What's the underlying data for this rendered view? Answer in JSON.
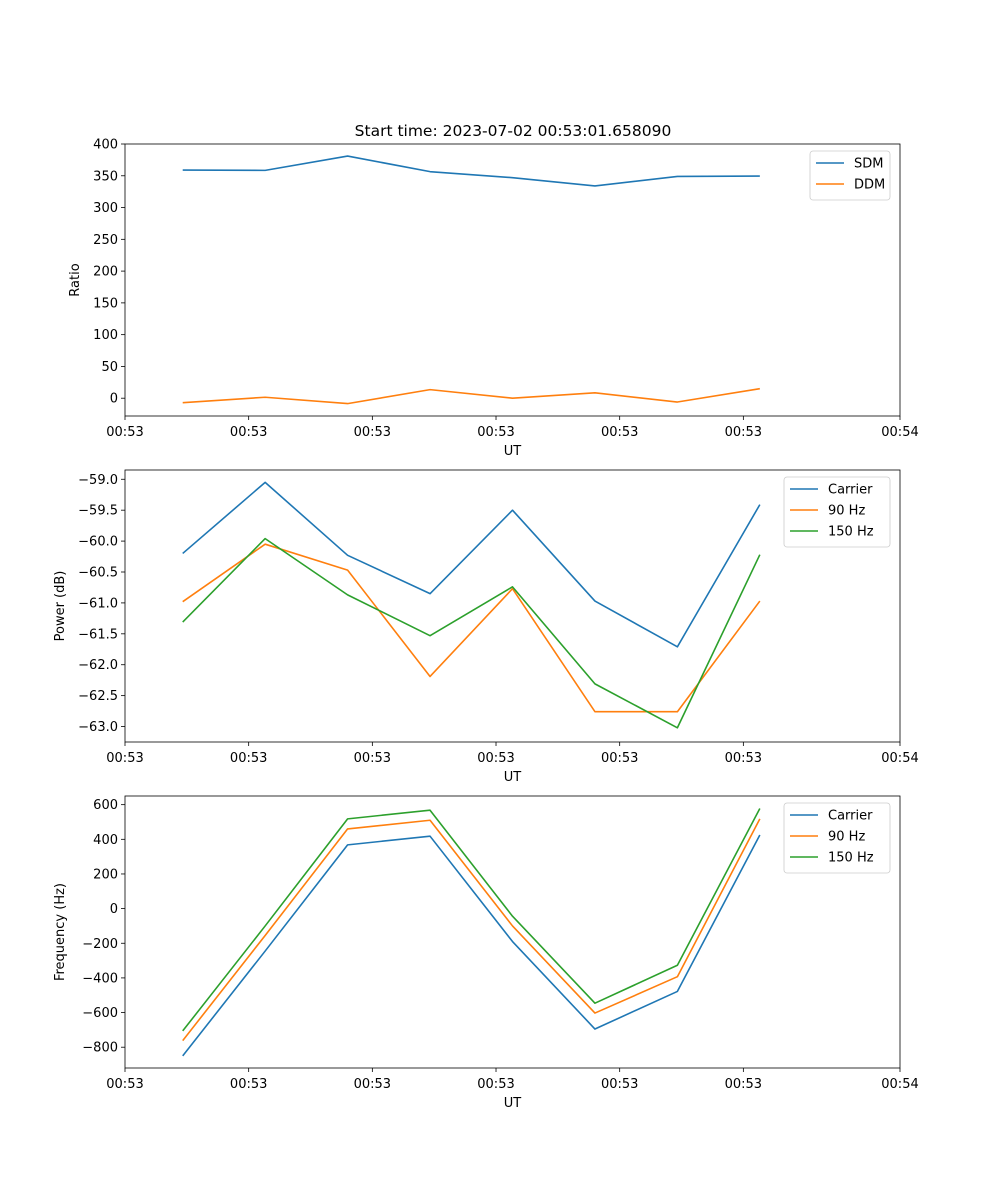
{
  "figure": {
    "title": "Start time: 2023-07-02 00:53:01.658090"
  },
  "x_axis": {
    "label": "UT",
    "tick_labels": [
      "00:53",
      "00:53",
      "00:53",
      "00:53",
      "00:53",
      "00:53",
      "00:54"
    ]
  },
  "chart_data": [
    {
      "type": "line",
      "ylabel": "Ratio",
      "xlabel": "UT",
      "ylim": [
        -28,
        400
      ],
      "yticks": [
        0,
        50,
        100,
        150,
        200,
        250,
        300,
        350,
        400
      ],
      "xlim": [
        -0.7,
        8.7
      ],
      "xticks": [
        -0.7,
        0.8,
        2.3,
        3.8,
        5.3,
        6.8,
        8.7
      ],
      "x": [
        0,
        1,
        2,
        3,
        4,
        5,
        6,
        7
      ],
      "legend_position": "top-right",
      "grid": false,
      "series": [
        {
          "name": "SDM",
          "color": "#1f77b4",
          "values": [
            359,
            358.5,
            381,
            356.5,
            347,
            334,
            349,
            349.5
          ]
        },
        {
          "name": "DDM",
          "color": "#ff7f0e",
          "values": [
            -7,
            1.5,
            -8.5,
            13.5,
            0,
            8.5,
            -6,
            15
          ]
        }
      ]
    },
    {
      "type": "line",
      "ylabel": "Power (dB)",
      "xlabel": "UT",
      "ylim": [
        -63.25,
        -58.85
      ],
      "yticks": [
        -63.0,
        -62.5,
        -62.0,
        -61.5,
        -61.0,
        -60.5,
        -60.0,
        -59.5,
        -59.0
      ],
      "ytick_labels": [
        "−63.0",
        "−62.5",
        "−62.0",
        "−61.5",
        "−61.0",
        "−60.5",
        "−60.0",
        "−59.5",
        "−59.0"
      ],
      "xlim": [
        -0.7,
        8.7
      ],
      "xticks": [
        -0.7,
        0.8,
        2.3,
        3.8,
        5.3,
        6.8,
        8.7
      ],
      "x": [
        0,
        1,
        2,
        3,
        4,
        5,
        6,
        7
      ],
      "legend_position": "top-right",
      "grid": false,
      "series": [
        {
          "name": "Carrier",
          "color": "#1f77b4",
          "values": [
            -60.2,
            -59.05,
            -60.23,
            -60.85,
            -59.5,
            -60.97,
            -61.71,
            -59.41
          ]
        },
        {
          "name": "90 Hz",
          "color": "#ff7f0e",
          "values": [
            -60.98,
            -60.05,
            -60.47,
            -62.19,
            -60.77,
            -62.76,
            -62.76,
            -60.97
          ]
        },
        {
          "name": "150 Hz",
          "color": "#2ca02c",
          "values": [
            -61.31,
            -59.96,
            -60.87,
            -61.53,
            -60.74,
            -62.31,
            -63.02,
            -60.22
          ]
        }
      ]
    },
    {
      "type": "line",
      "ylabel": "Frequency (Hz)",
      "xlabel": "UT",
      "ylim": [
        -920,
        650
      ],
      "yticks": [
        -800,
        -600,
        -400,
        -200,
        0,
        200,
        400,
        600
      ],
      "ytick_labels": [
        "−800",
        "−600",
        "−400",
        "−200",
        "0",
        "200",
        "400",
        "600"
      ],
      "xlim": [
        -0.7,
        8.7
      ],
      "xticks": [
        -0.7,
        0.8,
        2.3,
        3.8,
        5.3,
        6.8,
        8.7
      ],
      "x": [
        0,
        1,
        2,
        3,
        4,
        5,
        6,
        7
      ],
      "legend_position": "top-right",
      "grid": false,
      "series": [
        {
          "name": "Carrier",
          "color": "#1f77b4",
          "values": [
            -850,
            -245,
            368,
            418,
            -190,
            -695,
            -478,
            425
          ]
        },
        {
          "name": "90 Hz",
          "color": "#ff7f0e",
          "values": [
            -762,
            -155,
            460,
            510,
            -100,
            -603,
            -393,
            518
          ]
        },
        {
          "name": "150 Hz",
          "color": "#2ca02c",
          "values": [
            -706,
            -100,
            518,
            568,
            -44,
            -546,
            -327,
            578
          ]
        }
      ]
    }
  ]
}
